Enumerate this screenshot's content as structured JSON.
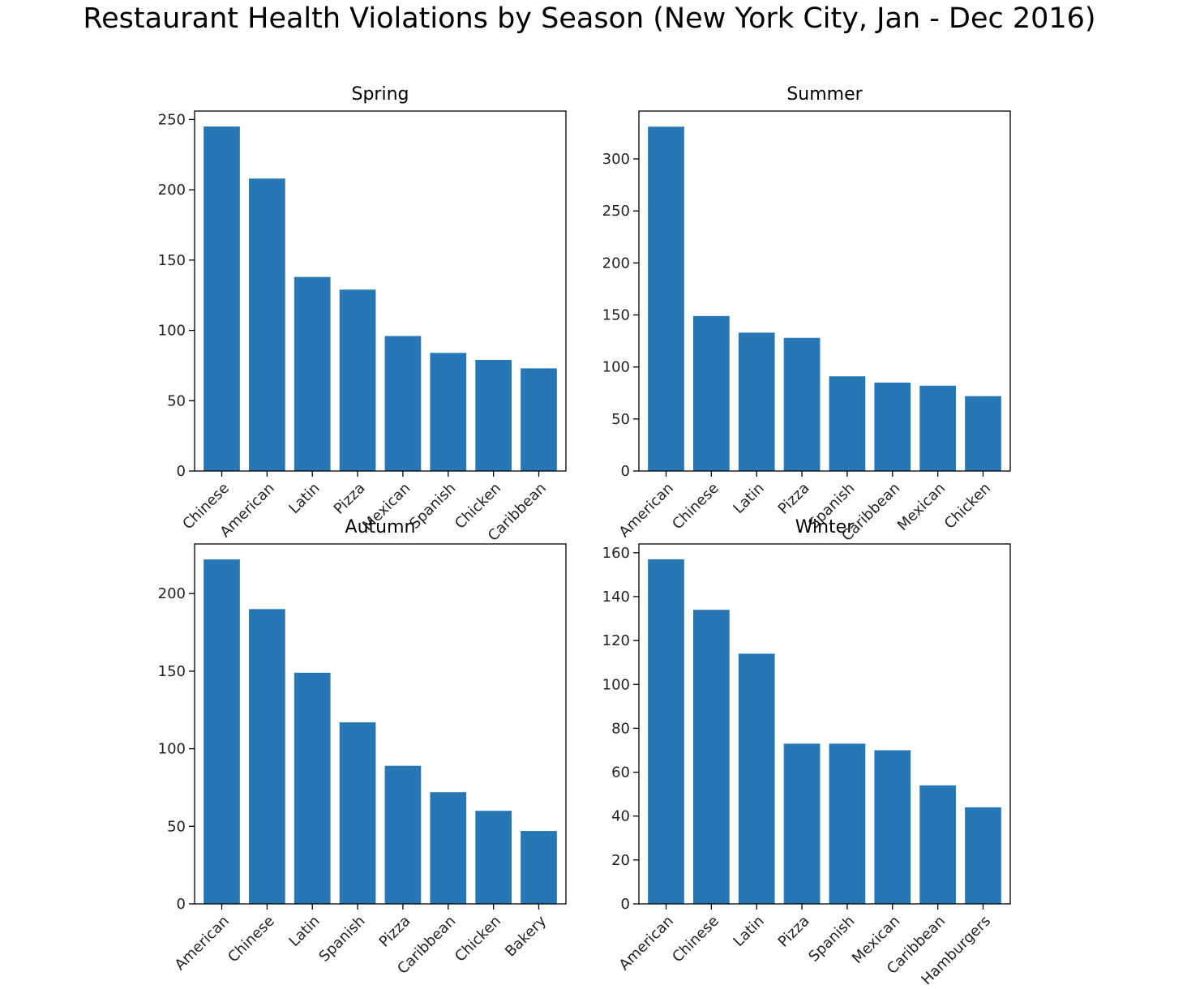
{
  "figure": {
    "suptitle": "Restaurant Health Violations by Season (New York City, Jan - Dec 2016)",
    "bar_color": "#2677b4"
  },
  "chart_data": [
    {
      "type": "bar",
      "title": "Spring",
      "categories": [
        "Chinese",
        "American",
        "Latin",
        "Pizza",
        "Mexican",
        "Spanish",
        "Chicken",
        "Caribbean"
      ],
      "values": [
        245,
        208,
        138,
        129,
        96,
        84,
        79,
        73
      ],
      "ylim": [
        0,
        256
      ],
      "yticks": [
        0,
        50,
        100,
        150,
        200,
        250
      ],
      "xlabel": "",
      "ylabel": ""
    },
    {
      "type": "bar",
      "title": "Summer",
      "categories": [
        "American",
        "Chinese",
        "Latin",
        "Pizza",
        "Spanish",
        "Caribbean",
        "Mexican",
        "Chicken"
      ],
      "values": [
        331,
        149,
        133,
        128,
        91,
        85,
        82,
        72
      ],
      "ylim": [
        0,
        346
      ],
      "yticks": [
        0,
        50,
        100,
        150,
        200,
        250,
        300
      ],
      "xlabel": "",
      "ylabel": ""
    },
    {
      "type": "bar",
      "title": "Autumn",
      "categories": [
        "American",
        "Chinese",
        "Latin",
        "Spanish",
        "Pizza",
        "Caribbean",
        "Chicken",
        "Bakery"
      ],
      "values": [
        222,
        190,
        149,
        117,
        89,
        72,
        60,
        47
      ],
      "ylim": [
        0,
        232
      ],
      "yticks": [
        0,
        50,
        100,
        150,
        200
      ],
      "xlabel": "",
      "ylabel": ""
    },
    {
      "type": "bar",
      "title": "Winter",
      "categories": [
        "American",
        "Chinese",
        "Latin",
        "Pizza",
        "Spanish",
        "Mexican",
        "Caribbean",
        "Hamburgers"
      ],
      "values": [
        157,
        134,
        114,
        73,
        73,
        70,
        54,
        44
      ],
      "ylim": [
        0,
        164
      ],
      "yticks": [
        0,
        20,
        40,
        60,
        80,
        100,
        120,
        140,
        160
      ],
      "xlabel": "",
      "ylabel": ""
    }
  ]
}
